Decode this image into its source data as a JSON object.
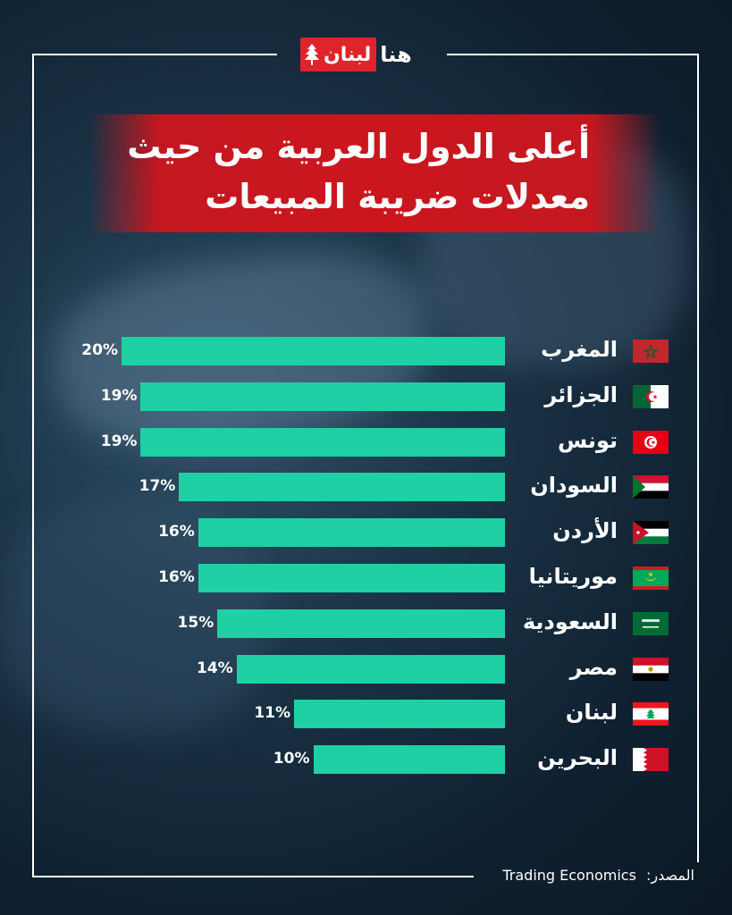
{
  "logo": {
    "part1": "لبنان",
    "part2": "هنا"
  },
  "title": {
    "line1": "أعلى الدول العربية من حيث",
    "line2": "معدلات ضريبة المبيعات"
  },
  "source": {
    "label": "المصدر:",
    "value": "Trading Economics"
  },
  "colors": {
    "bar": "#1fd0a4",
    "title_bg": "#cc161e",
    "logo_red": "#e0242b"
  },
  "chart_data": {
    "type": "bar",
    "orientation": "horizontal",
    "categories": [
      "المغرب",
      "الجزائر",
      "تونس",
      "السودان",
      "الأردن",
      "موريتانيا",
      "السعودية",
      "مصر",
      "لبنان",
      "البحرين"
    ],
    "values": [
      20,
      19,
      19,
      17,
      16,
      16,
      15,
      14,
      11,
      10
    ],
    "value_labels": [
      "20%",
      "19%",
      "19%",
      "17%",
      "16%",
      "16%",
      "15%",
      "14%",
      "11%",
      "10%"
    ],
    "flags": [
      "morocco-flag-icon",
      "algeria-flag-icon",
      "tunisia-flag-icon",
      "sudan-flag-icon",
      "jordan-flag-icon",
      "mauritania-flag-icon",
      "saudi-flag-icon",
      "egypt-flag-icon",
      "lebanon-flag-icon",
      "bahrain-flag-icon"
    ],
    "unit": "%",
    "grid": false,
    "legend": "none"
  }
}
